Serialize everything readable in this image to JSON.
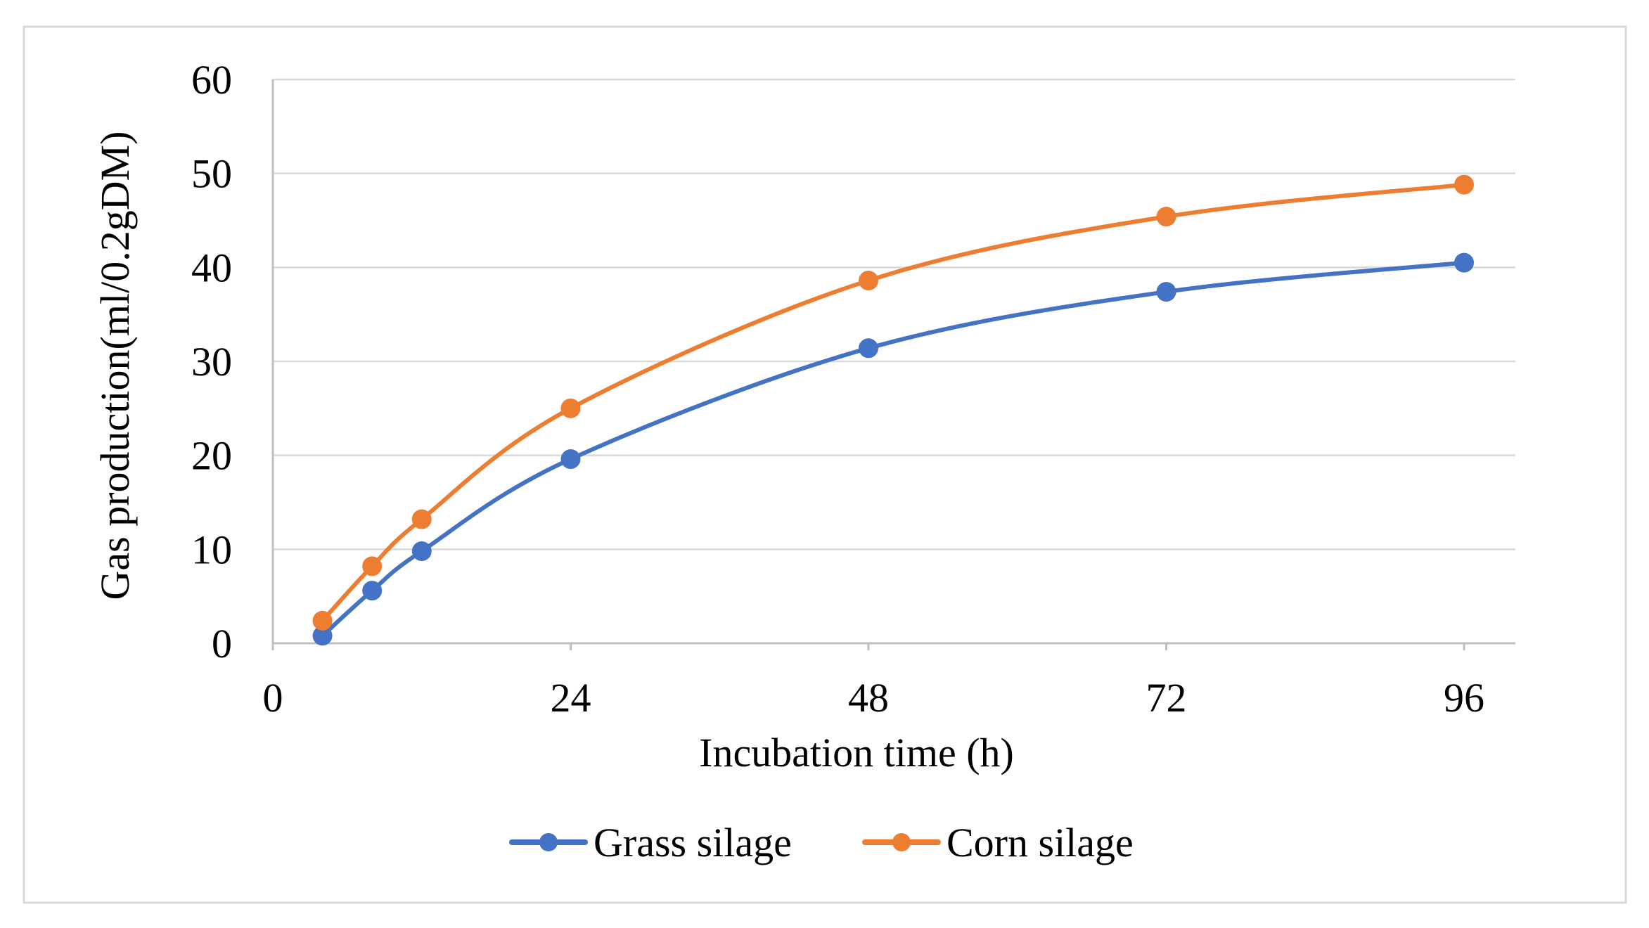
{
  "chart_data": {
    "type": "line",
    "title": "",
    "xlabel": "Incubation time (h)",
    "ylabel": "Gas production(ml/0.2gDM)",
    "xlim": [
      0,
      100
    ],
    "ylim": [
      0,
      60
    ],
    "xticks": [
      0,
      24,
      48,
      72,
      96
    ],
    "yticks": [
      0,
      10,
      20,
      30,
      40,
      50,
      60
    ],
    "xtick_labels": [
      "0",
      "24",
      "48",
      "72",
      "96"
    ],
    "ytick_labels": [
      "0",
      "10",
      "20",
      "30",
      "40",
      "50",
      "60"
    ],
    "grid": true,
    "legend_position": "bottom",
    "x": [
      4,
      8,
      12,
      24,
      48,
      72,
      96
    ],
    "series": [
      {
        "name": "Grass silage",
        "color": "#4472C4",
        "values": [
          0.8,
          5.6,
          9.8,
          19.6,
          31.4,
          37.4,
          40.5
        ]
      },
      {
        "name": "Corn silage",
        "color": "#ED7D31",
        "values": [
          2.4,
          8.2,
          13.2,
          25.0,
          38.6,
          45.4,
          48.8
        ]
      }
    ]
  }
}
